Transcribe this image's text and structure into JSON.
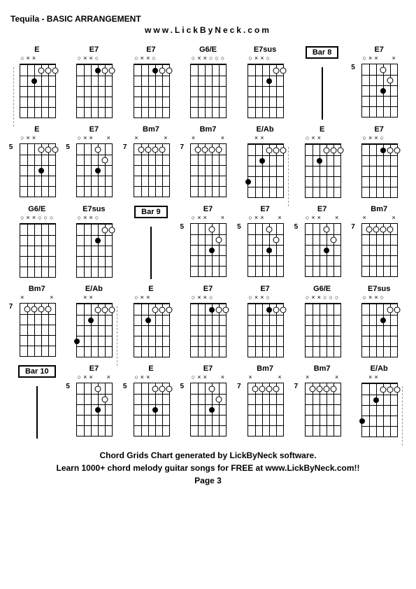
{
  "header": {
    "title": "Tequila - BASIC ARRANGEMENT",
    "url": "www.LickByNeck.com"
  },
  "footer": {
    "line1": "Chord Grids Chart generated by LickByNeck software.",
    "line2": "Learn 1000+ chord melody guitar songs for FREE at www.LickByNeck.com!!",
    "page": "Page 3"
  },
  "diagram_style": {
    "strings": 6,
    "frets": 5,
    "string_spacing": 10,
    "fret_spacing": 15,
    "colors": {
      "bg": "#ffffff",
      "line": "#000000",
      "dot": "#000000",
      "text": "#000000"
    }
  },
  "cells": [
    {
      "type": "chord",
      "label": "E",
      "fret_start": 0,
      "top": [
        "o",
        "x",
        "x",
        "",
        "",
        ""
      ],
      "dots": [
        [
          1,
          4,
          "o"
        ],
        [
          1,
          5,
          "o"
        ],
        [
          1,
          6,
          "o"
        ],
        [
          2,
          3,
          "f"
        ]
      ],
      "dashed_left": true
    },
    {
      "type": "chord",
      "label": "E7",
      "fret_start": 0,
      "top": [
        "o",
        "x",
        "x",
        "o",
        "",
        ""
      ],
      "dots": [
        [
          1,
          5,
          "o"
        ],
        [
          1,
          6,
          "o"
        ],
        [
          1,
          4,
          "f"
        ]
      ]
    },
    {
      "type": "chord",
      "label": "E7",
      "fret_start": 0,
      "top": [
        "o",
        "x",
        "x",
        "o",
        "",
        ""
      ],
      "dots": [
        [
          1,
          5,
          "o"
        ],
        [
          1,
          6,
          "o"
        ],
        [
          1,
          4,
          "f"
        ]
      ]
    },
    {
      "type": "chord",
      "label": "G6/E",
      "fret_start": 0,
      "top": [
        "o",
        "x",
        "x",
        "o",
        "o",
        "o"
      ],
      "dots": []
    },
    {
      "type": "chord",
      "label": "E7sus",
      "fret_start": 0,
      "top": [
        "o",
        "x",
        "x",
        "o",
        "",
        ""
      ],
      "dots": [
        [
          2,
          4,
          "f"
        ],
        [
          1,
          5,
          "o"
        ],
        [
          1,
          6,
          "o"
        ]
      ]
    },
    {
      "type": "bar",
      "label": "Bar 8"
    },
    {
      "type": "chord",
      "label": "E7",
      "fret_start": 5,
      "top": [
        "o",
        "x",
        "x",
        "",
        "",
        "x"
      ],
      "dots": [
        [
          1,
          4,
          "o"
        ],
        [
          2,
          5,
          "o"
        ],
        [
          3,
          4,
          "f"
        ]
      ]
    },
    {
      "type": "chord",
      "label": "E",
      "fret_start": 5,
      "top": [
        "o",
        "x",
        "x",
        "",
        "",
        ""
      ],
      "dots": [
        [
          1,
          4,
          "o"
        ],
        [
          1,
          5,
          "o"
        ],
        [
          1,
          6,
          "o"
        ],
        [
          3,
          4,
          "f"
        ]
      ]
    },
    {
      "type": "chord",
      "label": "E7",
      "fret_start": 5,
      "top": [
        "o",
        "x",
        "x",
        "",
        "",
        "x"
      ],
      "dots": [
        [
          1,
          4,
          "o"
        ],
        [
          2,
          5,
          "o"
        ],
        [
          3,
          4,
          "f"
        ]
      ]
    },
    {
      "type": "chord",
      "label": "Bm7",
      "fret_start": 7,
      "top": [
        "x",
        "",
        "",
        "",
        "",
        "x"
      ],
      "dots": [
        [
          1,
          2,
          "o"
        ],
        [
          1,
          3,
          "o"
        ],
        [
          1,
          4,
          "o"
        ],
        [
          1,
          5,
          "o"
        ]
      ]
    },
    {
      "type": "chord",
      "label": "Bm7",
      "fret_start": 7,
      "top": [
        "x",
        "",
        "",
        "",
        "",
        "x"
      ],
      "dots": [
        [
          1,
          2,
          "o"
        ],
        [
          1,
          3,
          "o"
        ],
        [
          1,
          4,
          "o"
        ],
        [
          1,
          5,
          "o"
        ]
      ]
    },
    {
      "type": "chord",
      "label": "E/Ab",
      "fret_start": 0,
      "top": [
        "",
        "x",
        "x",
        "",
        "",
        ""
      ],
      "dots": [
        [
          1,
          4,
          "o"
        ],
        [
          1,
          5,
          "o"
        ],
        [
          1,
          6,
          "o"
        ],
        [
          2,
          3,
          "f"
        ],
        [
          4,
          1,
          "f"
        ]
      ],
      "dashed_right": true
    },
    {
      "type": "chord",
      "label": "E",
      "fret_start": 0,
      "top": [
        "o",
        "x",
        "x",
        "",
        "",
        ""
      ],
      "dots": [
        [
          1,
          4,
          "o"
        ],
        [
          1,
          5,
          "o"
        ],
        [
          1,
          6,
          "o"
        ],
        [
          2,
          3,
          "f"
        ]
      ]
    },
    {
      "type": "chord",
      "label": "E7",
      "fret_start": 0,
      "top": [
        "o",
        "x",
        "x",
        "o",
        "",
        ""
      ],
      "dots": [
        [
          1,
          5,
          "o"
        ],
        [
          1,
          6,
          "o"
        ],
        [
          1,
          4,
          "f"
        ]
      ]
    },
    {
      "type": "chord",
      "label": "G6/E",
      "fret_start": 0,
      "top": [
        "o",
        "x",
        "x",
        "o",
        "o",
        "o"
      ],
      "dots": []
    },
    {
      "type": "chord",
      "label": "E7sus",
      "fret_start": 0,
      "top": [
        "o",
        "x",
        "x",
        "o",
        "",
        ""
      ],
      "dots": [
        [
          2,
          4,
          "f"
        ],
        [
          1,
          5,
          "o"
        ],
        [
          1,
          6,
          "o"
        ]
      ]
    },
    {
      "type": "bar",
      "label": "Bar 9"
    },
    {
      "type": "chord",
      "label": "E7",
      "fret_start": 5,
      "top": [
        "o",
        "x",
        "x",
        "",
        "",
        "x"
      ],
      "dots": [
        [
          1,
          4,
          "o"
        ],
        [
          2,
          5,
          "o"
        ],
        [
          3,
          4,
          "f"
        ]
      ]
    },
    {
      "type": "chord",
      "label": "E7",
      "fret_start": 5,
      "top": [
        "o",
        "x",
        "x",
        "",
        "",
        "x"
      ],
      "dots": [
        [
          1,
          4,
          "o"
        ],
        [
          2,
          5,
          "o"
        ],
        [
          3,
          4,
          "f"
        ]
      ]
    },
    {
      "type": "chord",
      "label": "E7",
      "fret_start": 5,
      "top": [
        "o",
        "x",
        "x",
        "",
        "",
        "x"
      ],
      "dots": [
        [
          1,
          4,
          "o"
        ],
        [
          2,
          5,
          "o"
        ],
        [
          3,
          4,
          "f"
        ]
      ]
    },
    {
      "type": "chord",
      "label": "Bm7",
      "fret_start": 7,
      "top": [
        "x",
        "",
        "",
        "",
        "",
        "x"
      ],
      "dots": [
        [
          1,
          2,
          "o"
        ],
        [
          1,
          3,
          "o"
        ],
        [
          1,
          4,
          "o"
        ],
        [
          1,
          5,
          "o"
        ]
      ]
    },
    {
      "type": "chord",
      "label": "Bm7",
      "fret_start": 7,
      "top": [
        "x",
        "",
        "",
        "",
        "",
        "x"
      ],
      "dots": [
        [
          1,
          2,
          "o"
        ],
        [
          1,
          3,
          "o"
        ],
        [
          1,
          4,
          "o"
        ],
        [
          1,
          5,
          "o"
        ]
      ]
    },
    {
      "type": "chord",
      "label": "E/Ab",
      "fret_start": 0,
      "top": [
        "",
        "x",
        "x",
        "",
        "",
        ""
      ],
      "dots": [
        [
          1,
          4,
          "o"
        ],
        [
          1,
          5,
          "o"
        ],
        [
          1,
          6,
          "o"
        ],
        [
          2,
          3,
          "f"
        ],
        [
          4,
          1,
          "f"
        ]
      ],
      "dashed_right": true
    },
    {
      "type": "chord",
      "label": "E",
      "fret_start": 0,
      "top": [
        "o",
        "x",
        "x",
        "",
        "",
        ""
      ],
      "dots": [
        [
          1,
          4,
          "o"
        ],
        [
          1,
          5,
          "o"
        ],
        [
          1,
          6,
          "o"
        ],
        [
          2,
          3,
          "f"
        ]
      ]
    },
    {
      "type": "chord",
      "label": "E7",
      "fret_start": 0,
      "top": [
        "o",
        "x",
        "x",
        "o",
        "",
        ""
      ],
      "dots": [
        [
          1,
          5,
          "o"
        ],
        [
          1,
          6,
          "o"
        ],
        [
          1,
          4,
          "f"
        ]
      ]
    },
    {
      "type": "chord",
      "label": "E7",
      "fret_start": 0,
      "top": [
        "o",
        "x",
        "x",
        "o",
        "",
        ""
      ],
      "dots": [
        [
          1,
          5,
          "o"
        ],
        [
          1,
          6,
          "o"
        ],
        [
          1,
          4,
          "f"
        ]
      ]
    },
    {
      "type": "chord",
      "label": "G6/E",
      "fret_start": 0,
      "top": [
        "o",
        "x",
        "x",
        "o",
        "o",
        "o"
      ],
      "dots": []
    },
    {
      "type": "chord",
      "label": "E7sus",
      "fret_start": 0,
      "top": [
        "o",
        "x",
        "x",
        "o",
        "",
        ""
      ],
      "dots": [
        [
          2,
          4,
          "f"
        ],
        [
          1,
          5,
          "o"
        ],
        [
          1,
          6,
          "o"
        ]
      ]
    },
    {
      "type": "bar",
      "label": "Bar 10"
    },
    {
      "type": "chord",
      "label": "E7",
      "fret_start": 5,
      "top": [
        "o",
        "x",
        "x",
        "",
        "",
        "x"
      ],
      "dots": [
        [
          1,
          4,
          "o"
        ],
        [
          2,
          5,
          "o"
        ],
        [
          3,
          4,
          "f"
        ]
      ]
    },
    {
      "type": "chord",
      "label": "E",
      "fret_start": 5,
      "top": [
        "o",
        "x",
        "x",
        "",
        "",
        ""
      ],
      "dots": [
        [
          1,
          4,
          "o"
        ],
        [
          1,
          5,
          "o"
        ],
        [
          1,
          6,
          "o"
        ],
        [
          3,
          4,
          "f"
        ]
      ]
    },
    {
      "type": "chord",
      "label": "E7",
      "fret_start": 5,
      "top": [
        "o",
        "x",
        "x",
        "",
        "",
        "x"
      ],
      "dots": [
        [
          1,
          4,
          "o"
        ],
        [
          2,
          5,
          "o"
        ],
        [
          3,
          4,
          "f"
        ]
      ]
    },
    {
      "type": "chord",
      "label": "Bm7",
      "fret_start": 7,
      "top": [
        "x",
        "",
        "",
        "",
        "",
        "x"
      ],
      "dots": [
        [
          1,
          2,
          "o"
        ],
        [
          1,
          3,
          "o"
        ],
        [
          1,
          4,
          "o"
        ],
        [
          1,
          5,
          "o"
        ]
      ]
    },
    {
      "type": "chord",
      "label": "Bm7",
      "fret_start": 7,
      "top": [
        "x",
        "",
        "",
        "",
        "",
        "x"
      ],
      "dots": [
        [
          1,
          2,
          "o"
        ],
        [
          1,
          3,
          "o"
        ],
        [
          1,
          4,
          "o"
        ],
        [
          1,
          5,
          "o"
        ]
      ]
    },
    {
      "type": "chord",
      "label": "E/Ab",
      "fret_start": 0,
      "top": [
        "",
        "x",
        "x",
        "",
        "",
        ""
      ],
      "dots": [
        [
          1,
          4,
          "o"
        ],
        [
          1,
          5,
          "o"
        ],
        [
          1,
          6,
          "o"
        ],
        [
          2,
          3,
          "f"
        ],
        [
          4,
          1,
          "f"
        ]
      ],
      "dashed_right": true
    }
  ]
}
